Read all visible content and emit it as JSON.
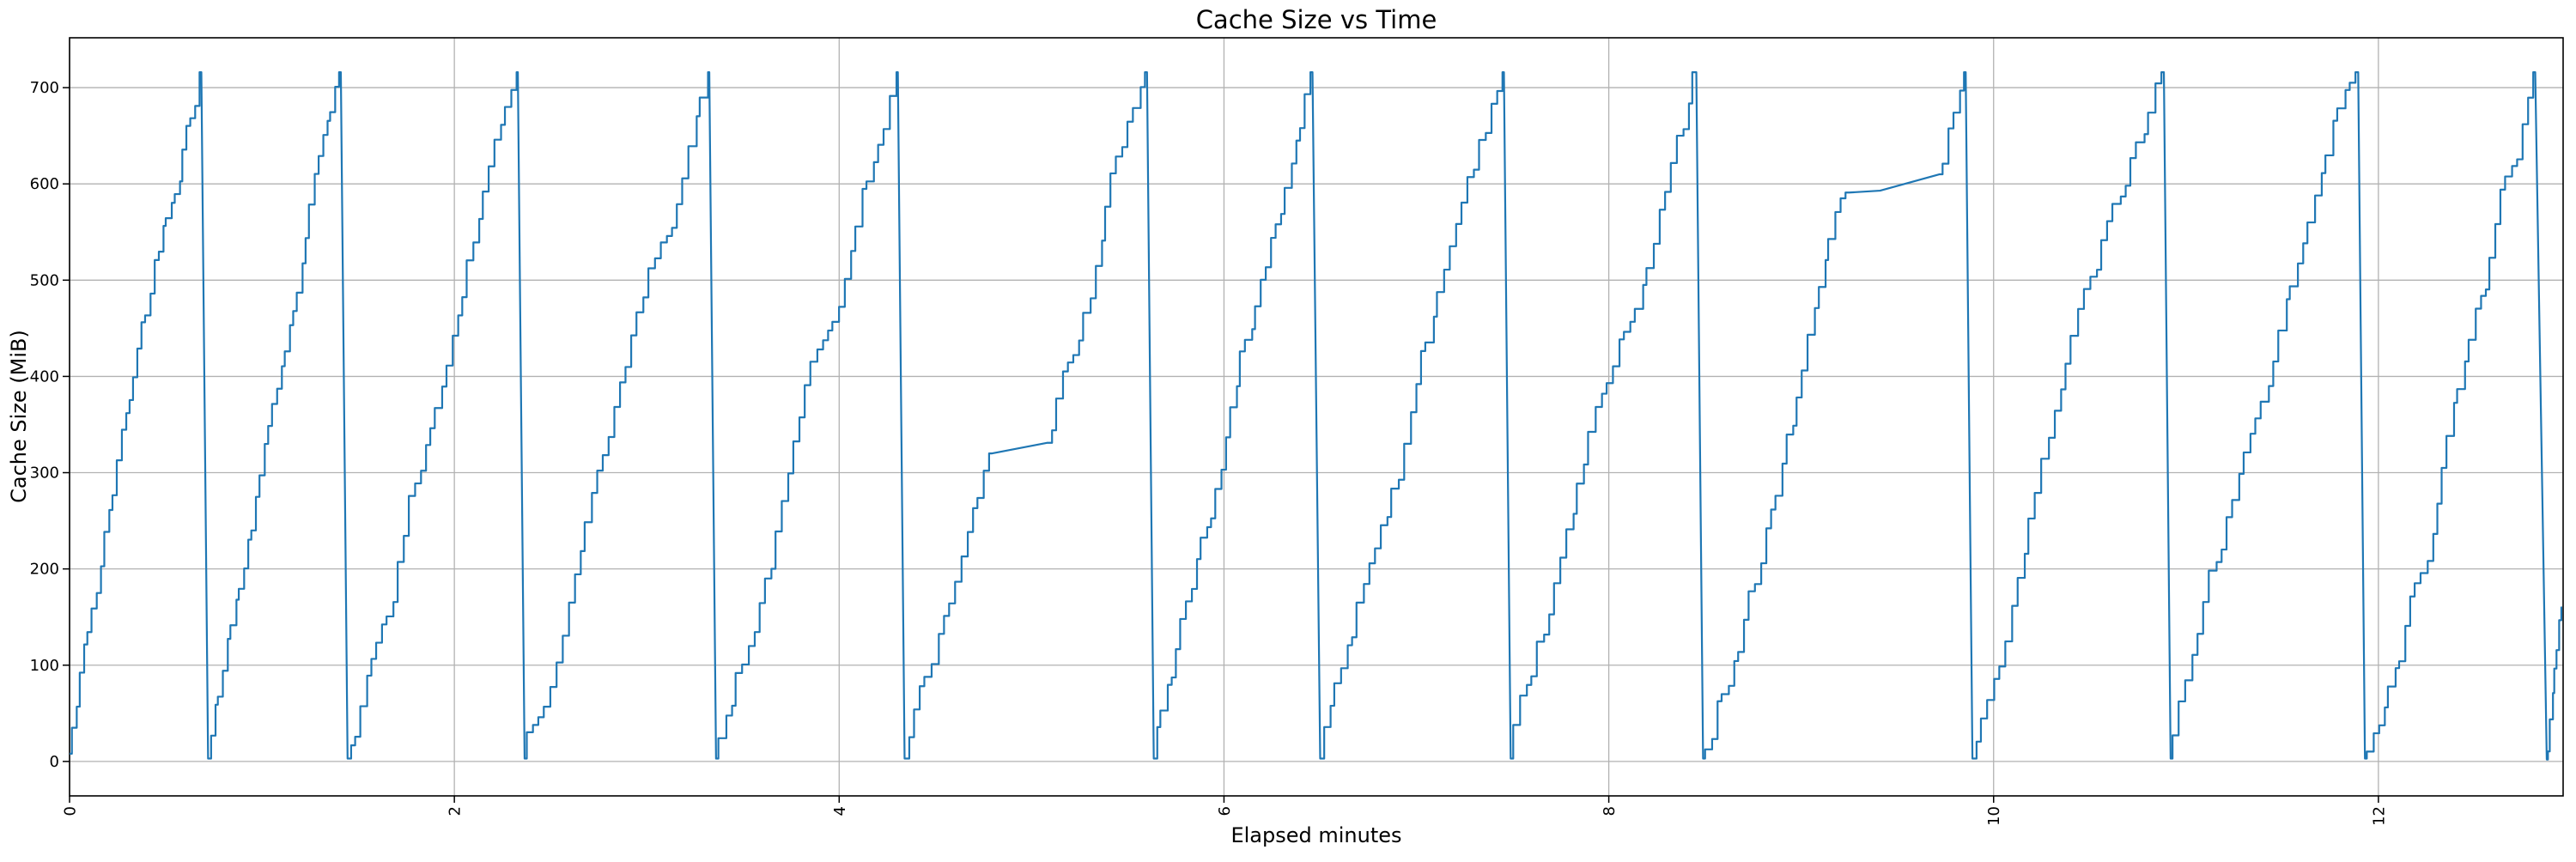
{
  "chart_data": {
    "type": "line",
    "title": "Cache Size vs Time",
    "xlabel": "Elapsed minutes",
    "ylabel": "Cache Size (MiB)",
    "xlim": [
      0,
      12.96
    ],
    "ylim": [
      -35.8,
      751.8
    ],
    "xticks": [
      0,
      2,
      4,
      6,
      8,
      10,
      12
    ],
    "yticks": [
      0,
      100,
      200,
      300,
      400,
      500,
      600,
      700
    ],
    "grid": true,
    "legend": "none",
    "line_color": "#1f77b4",
    "grid_color": "#b2b2b2",
    "spine_color": "#000000",
    "peak_value_mib": 716,
    "reset_value_mib": 3,
    "avg_step_mib": 22,
    "series_shape": "staircase-sawtooth",
    "cycles": [
      {
        "knots": [
          [
            0.0,
            8
          ],
          [
            0.685,
            716
          ]
        ]
      },
      {
        "knots": [
          [
            0.72,
            3
          ],
          [
            1.41,
            716
          ]
        ]
      },
      {
        "knots": [
          [
            1.445,
            3
          ],
          [
            2.33,
            716
          ]
        ]
      },
      {
        "knots": [
          [
            2.365,
            3
          ],
          [
            3.325,
            716
          ]
        ]
      },
      {
        "knots": [
          [
            3.36,
            3
          ],
          [
            4.305,
            716
          ]
        ]
      },
      {
        "knots": [
          [
            4.34,
            3
          ],
          [
            4.77,
            302
          ],
          [
            4.795,
            320
          ],
          [
            5.08,
            331
          ],
          [
            5.115,
            344
          ],
          [
            5.6,
            716
          ]
        ]
      },
      {
        "knots": [
          [
            5.635,
            3
          ],
          [
            6.46,
            716
          ]
        ]
      },
      {
        "knots": [
          [
            6.5,
            3
          ],
          [
            7.455,
            716
          ]
        ]
      },
      {
        "knots": [
          [
            7.49,
            3
          ],
          [
            8.455,
            716
          ]
        ]
      },
      {
        "knots": [
          [
            8.49,
            3
          ],
          [
            9.215,
            585
          ],
          [
            9.25,
            591
          ],
          [
            9.41,
            593
          ],
          [
            9.72,
            610
          ],
          [
            9.755,
            621
          ],
          [
            9.855,
            716
          ]
        ]
      },
      {
        "knots": [
          [
            9.89,
            3
          ],
          [
            10.885,
            716
          ]
        ]
      },
      {
        "knots": [
          [
            10.92,
            3
          ],
          [
            11.895,
            716
          ]
        ]
      },
      {
        "knots": [
          [
            11.93,
            3
          ],
          [
            12.815,
            716
          ]
        ]
      },
      {
        "knots": [
          [
            12.875,
            2
          ],
          [
            12.955,
            160
          ]
        ]
      }
    ]
  }
}
